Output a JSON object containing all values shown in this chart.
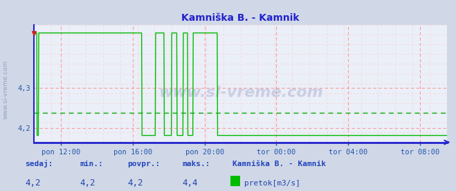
{
  "title": "Kamniška B. - Kamnik",
  "bg_color": "#d0d8e8",
  "plot_bg_color": "#eaeff8",
  "grid_color_major": "#ff9999",
  "grid_color_minor": "#ffcccc",
  "line_color": "#00bb00",
  "avg_line_color": "#00aa00",
  "axis_color": "#2222cc",
  "title_color": "#2222cc",
  "label_color": "#2255aa",
  "stats_label_color": "#2244bb",
  "stats_value_color": "#2244aa",
  "x_tick_labels": [
    "pon 12:00",
    "pon 16:00",
    "pon 20:00",
    "tor 00:00",
    "tor 04:00",
    "tor 08:00"
  ],
  "y_ticks": [
    4.2,
    4.3
  ],
  "ymin": 4.165,
  "ymax": 4.455,
  "avg_value": 4.238,
  "base_value": 4.182,
  "spike_value": 4.435,
  "sedaj": "4,2",
  "min_val": "4,2",
  "povpr": "4,2",
  "maks": "4,4",
  "legend_label": "pretok[m3/s]",
  "legend_station": "Kamniška B. - Kamnik",
  "watermark": "www.si-vreme.com"
}
